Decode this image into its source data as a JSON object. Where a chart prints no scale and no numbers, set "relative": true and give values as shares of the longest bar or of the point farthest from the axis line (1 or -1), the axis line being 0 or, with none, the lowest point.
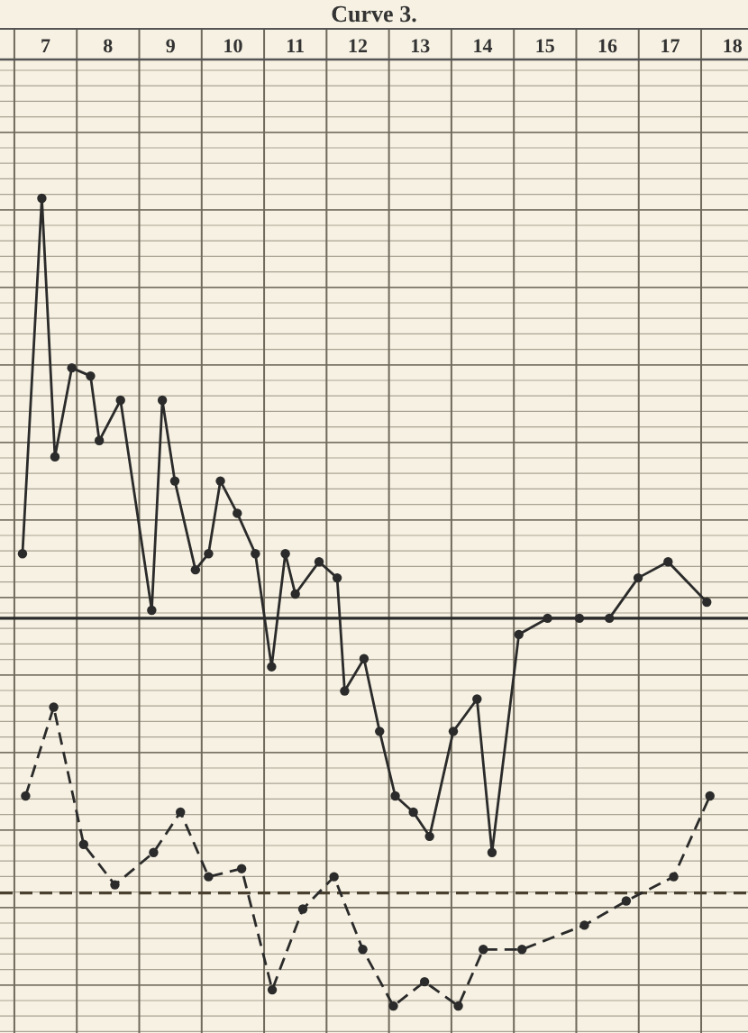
{
  "chart_data": {
    "type": "line",
    "title": "Curve 3.",
    "relative": true,
    "grid": true,
    "marker": "circle",
    "xlim": [
      6.77,
      18.75
    ],
    "xticks": [
      {
        "value": 7.5,
        "label": "7"
      },
      {
        "value": 8.5,
        "label": "8"
      },
      {
        "value": 9.5,
        "label": "9"
      },
      {
        "value": 10.5,
        "label": "10"
      },
      {
        "value": 11.5,
        "label": "11"
      },
      {
        "value": 12.5,
        "label": "12"
      },
      {
        "value": 13.5,
        "label": "13"
      },
      {
        "value": 14.5,
        "label": "14"
      },
      {
        "value": 15.5,
        "label": "15"
      },
      {
        "value": 16.5,
        "label": "16"
      },
      {
        "value": 17.5,
        "label": "17"
      },
      {
        "value": 18.5,
        "label": "18"
      }
    ],
    "series": [
      {
        "color": "#2b2b2b",
        "line_style": "solid",
        "x": [
          7.13,
          7.44,
          7.65,
          7.92,
          8.22,
          8.36,
          8.7,
          9.2,
          9.37,
          9.57,
          9.9,
          10.11,
          10.3,
          10.57,
          10.86,
          11.12,
          11.34,
          11.5,
          11.88,
          12.17,
          12.29,
          12.6,
          12.85,
          13.1,
          13.39,
          13.65,
          14.03,
          14.41,
          14.65,
          15.08,
          15.54,
          16.05,
          16.53,
          16.99,
          17.47,
          18.09
        ],
        "values": [
          0.56,
          1,
          0.68,
          0.79,
          0.78,
          0.7,
          0.75,
          0.49,
          0.75,
          0.65,
          0.54,
          0.56,
          0.65,
          0.61,
          0.56,
          0.42,
          0.56,
          0.51,
          0.55,
          0.53,
          0.39,
          0.43,
          0.34,
          0.26,
          0.24,
          0.21,
          0.34,
          0.38,
          0.19,
          0.46,
          0.48,
          0.48,
          0.48,
          0.53,
          0.55,
          0.5
        ]
      },
      {
        "color": "#2b2b2b",
        "line_style": "dashed",
        "x": [
          7.18,
          7.63,
          8.11,
          8.61,
          9.23,
          9.66,
          10.11,
          10.64,
          11.13,
          11.62,
          12.12,
          12.58,
          13.07,
          13.57,
          14.11,
          14.51,
          15.13,
          16.13,
          16.8,
          17.56,
          18.14
        ],
        "values": [
          0.26,
          0.37,
          0.2,
          0.15,
          0.19,
          0.24,
          0.16,
          0.17,
          0.02,
          0.12,
          0.16,
          0.07,
          0,
          0.03,
          0,
          0.07,
          0.07,
          0.1,
          0.13,
          0.16,
          0.26
        ]
      }
    ],
    "ref_lines": [
      {
        "axis": "y",
        "value": 0.48,
        "color": "#2b2b2b",
        "line_style": "solid"
      },
      {
        "axis": "y",
        "value": 0.14,
        "color": "#4a4030",
        "line_style": "dashed"
      }
    ]
  }
}
